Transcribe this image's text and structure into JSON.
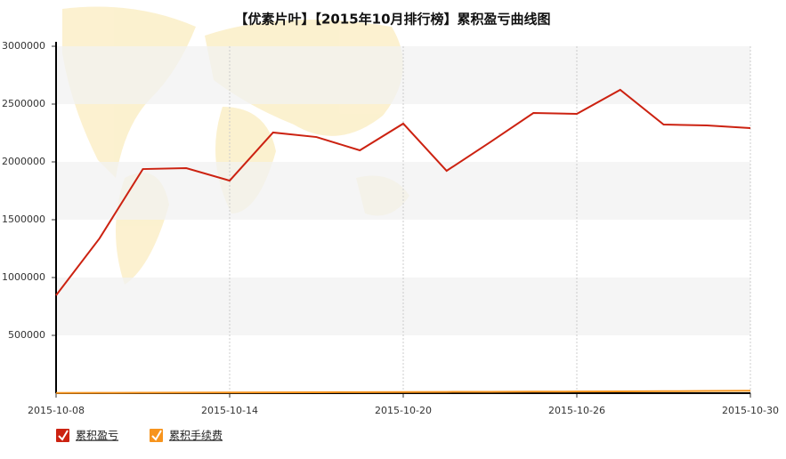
{
  "chart_data": {
    "type": "line",
    "title": "【优素片叶】【2015年10月排行榜】累积盈亏曲线图",
    "categories": [
      "2015-10-08",
      null,
      null,
      null,
      "2015-10-14",
      null,
      null,
      null,
      "2015-10-20",
      null,
      null,
      null,
      "2015-10-26",
      null,
      null,
      null,
      "2015-10-30"
    ],
    "series": [
      {
        "name": "累积盈亏",
        "color": "#cc2211",
        "values": [
          846000,
          1338000,
          1938000,
          1946000,
          1838000,
          2254000,
          2215000,
          2100000,
          2331000,
          1923000,
          2170000,
          2423000,
          2415000,
          2623000,
          2323000,
          2315000,
          2292000
        ]
      },
      {
        "name": "累积手续费",
        "color": "#f7941d",
        "values": [
          2000,
          3000,
          4000,
          5000,
          6000,
          7000,
          8000,
          9000,
          10000,
          11000,
          12000,
          13000,
          14000,
          15000,
          17000,
          19000,
          21000
        ]
      }
    ],
    "ylim": [
      0,
      3000000
    ],
    "yticks": [
      500000,
      1000000,
      1500000,
      2000000,
      2500000,
      3000000
    ],
    "grid": true
  }
}
